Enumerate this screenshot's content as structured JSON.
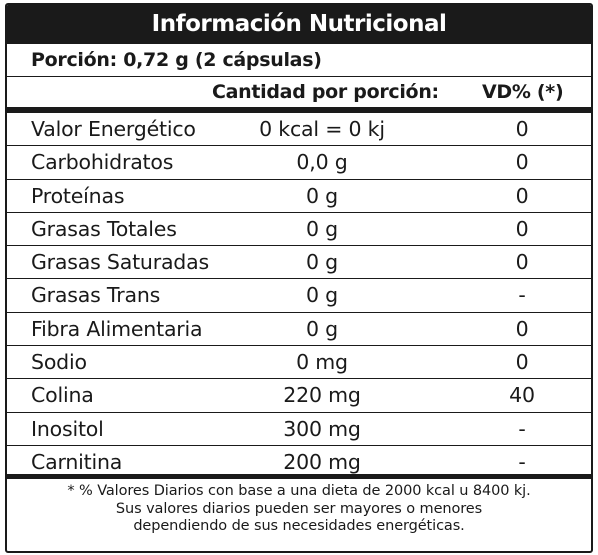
{
  "title": "Información Nutricional",
  "serving": "Porción: 0,72 g (2 cápsulas)",
  "headers": {
    "amount": "Cantidad por porción:",
    "dv": "VD% (*)"
  },
  "rows": [
    {
      "nutrient": "Valor Energético",
      "amount": "0 kcal = 0 kj",
      "dv": "0"
    },
    {
      "nutrient": "Carbohidratos",
      "amount": "0,0 g",
      "dv": "0"
    },
    {
      "nutrient": "Proteínas",
      "amount": "0 g",
      "dv": "0"
    },
    {
      "nutrient": "Grasas Totales",
      "amount": "0 g",
      "dv": "0"
    },
    {
      "nutrient": "Grasas Saturadas",
      "amount": "0 g",
      "dv": "0"
    },
    {
      "nutrient": "Grasas Trans",
      "amount": "0 g",
      "dv": "-"
    },
    {
      "nutrient": "Fibra Alimentaria",
      "amount": "0 g",
      "dv": "0"
    },
    {
      "nutrient": "Sodio",
      "amount": "0 mg",
      "dv": "0"
    },
    {
      "nutrient": "Colina",
      "amount": "220 mg",
      "dv": "40"
    },
    {
      "nutrient": "Inositol",
      "amount": "300 mg",
      "dv": "-"
    },
    {
      "nutrient": "Carnitina",
      "amount": "200 mg",
      "dv": "-"
    }
  ],
  "footnote": [
    "* % Valores Diarios con base a una dieta de 2000 kcal u 8400 kj.",
    "Sus valores diarios pueden ser mayores o menores",
    "dependiendo de sus necesidades energéticas."
  ]
}
